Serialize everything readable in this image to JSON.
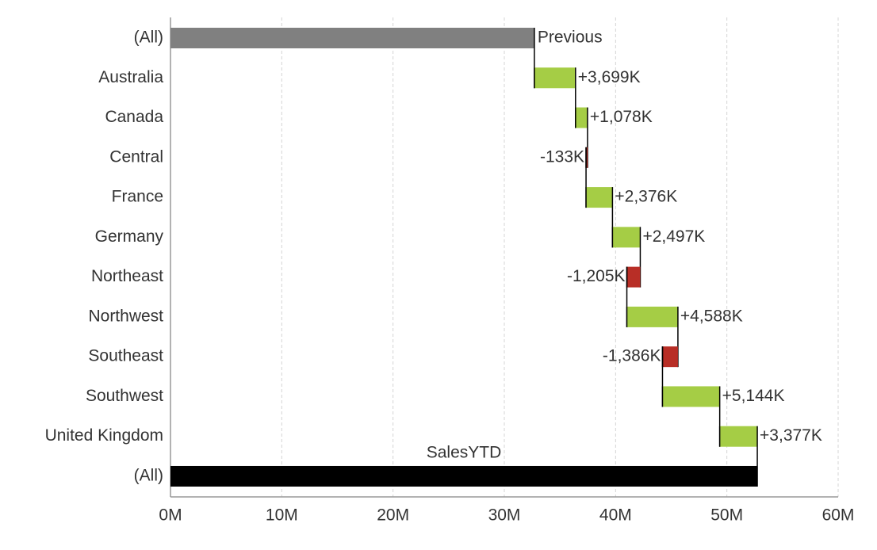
{
  "chart_data": {
    "type": "waterfall",
    "start_category": "(All)",
    "start": {
      "label": "Previous",
      "value": 32.7
    },
    "categories": [
      "Australia",
      "Canada",
      "Central",
      "France",
      "Germany",
      "Northeast",
      "Northwest",
      "Southeast",
      "Southwest",
      "United Kingdom"
    ],
    "values": [
      3.699,
      1.078,
      -0.133,
      2.376,
      2.497,
      -1.205,
      4.588,
      -1.386,
      5.144,
      3.377
    ],
    "value_labels": [
      "+3,699K",
      "+1,078K",
      "-133K",
      "+2,376K",
      "+2,497K",
      "-1,205K",
      "+4,588K",
      "-1,386K",
      "+5,144K",
      "+3,377K"
    ],
    "end_category": "(All)",
    "end": {
      "label": "SalesYTD",
      "value": 52.735
    },
    "colors": {
      "start": "#808080",
      "increase": "#a5cd45",
      "decrease": "#b82e26",
      "end": "#000000",
      "connector": "#000000"
    },
    "xlim": [
      0,
      60
    ],
    "xticks": [
      {
        "value": 0,
        "label": "0M"
      },
      {
        "value": 10,
        "label": "10M"
      },
      {
        "value": 20,
        "label": "20M"
      },
      {
        "value": 30,
        "label": "30M"
      },
      {
        "value": 40,
        "label": "40M"
      },
      {
        "value": 50,
        "label": "50M"
      },
      {
        "value": 60,
        "label": "60M"
      }
    ],
    "grid": true
  }
}
